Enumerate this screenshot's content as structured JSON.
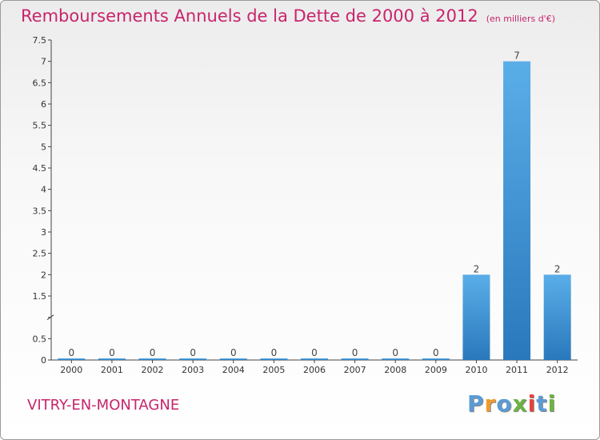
{
  "header": {
    "title": "Remboursements Annuels de la Dette de 2000 à 2012",
    "unit": "(en milliers d'€)"
  },
  "footer": {
    "city": "VITRY-EN-MONTAGNE",
    "logo": [
      "P",
      "r",
      "o",
      "x",
      "i",
      "t",
      "i"
    ]
  },
  "colors": {
    "title": "#c8246c",
    "bar_top": "#5aaee8",
    "bar_bottom": "#2a78bc",
    "logo": [
      "#5b9bd5",
      "#f29a2e",
      "#5b9bd5",
      "#6cb33f",
      "#e8403a",
      "#5b9bd5",
      "#6cb33f"
    ]
  },
  "chart_data": {
    "type": "bar",
    "title": "Remboursements Annuels de la Dette de 2000 à 2012",
    "subtitle": "(en milliers d'€)",
    "categories": [
      "2000",
      "2001",
      "2002",
      "2003",
      "2004",
      "2005",
      "2006",
      "2007",
      "2008",
      "2009",
      "2010",
      "2011",
      "2012"
    ],
    "values": [
      0,
      0,
      0,
      0,
      0,
      0,
      0,
      0,
      0,
      0,
      2,
      7,
      2
    ],
    "data_labels": [
      "0",
      "0",
      "0",
      "0",
      "0",
      "0",
      "0",
      "0",
      "0",
      "0",
      "2",
      "7",
      "2"
    ],
    "yticks": [
      0,
      0.5,
      1,
      1.5,
      2,
      2.5,
      3,
      3.5,
      4,
      4.5,
      5,
      5.5,
      6,
      6.5,
      7,
      7.5
    ],
    "ytick_labels": [
      "0",
      "0.5",
      "",
      "1.5",
      "2",
      "2.5",
      "3",
      "3.5",
      "4",
      "4.5",
      "5",
      "5.5",
      "6",
      "6.5",
      "7",
      "7.5"
    ],
    "ylim": [
      0,
      7.5
    ],
    "xlabel": "",
    "ylabel": "",
    "grid": false,
    "legend": "none"
  }
}
